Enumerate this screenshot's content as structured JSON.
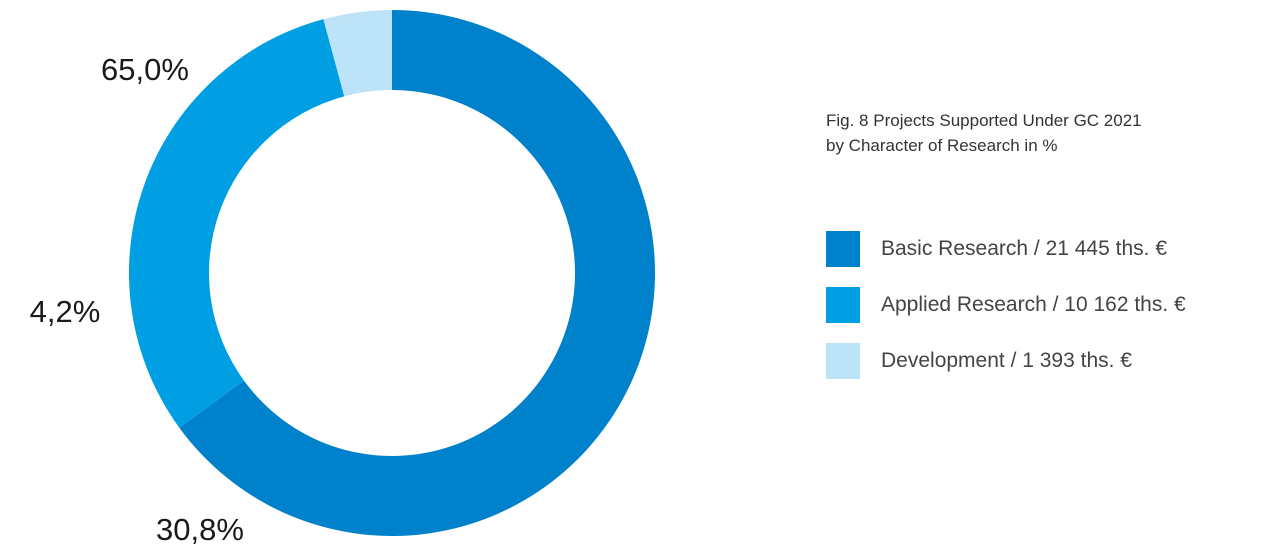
{
  "chart_data": {
    "type": "pie",
    "donut": true,
    "title_lines": [
      "Fig. 8 Projects Supported Under GC 2021",
      "by Character of Research in %"
    ],
    "categories": [
      "Basic Research",
      "Applied Research",
      "Development"
    ],
    "values": [
      65.0,
      30.8,
      4.2
    ],
    "value_labels": [
      "65,0%",
      "30,8%",
      "4,2%"
    ],
    "amounts": [
      "21 445 ths. €",
      "10 162 ths. €",
      "1 393 ths. €"
    ],
    "legend_labels": [
      "Basic Research / 21 445 ths. €",
      "Applied Research / 10 162 ths. €",
      "Development / 1 393 ths. €"
    ],
    "colors": [
      "#0081cc",
      "#009fe3",
      "#bde3f8"
    ],
    "start_angle_deg": 270,
    "direction": "clockwise",
    "legend_position": "right"
  }
}
